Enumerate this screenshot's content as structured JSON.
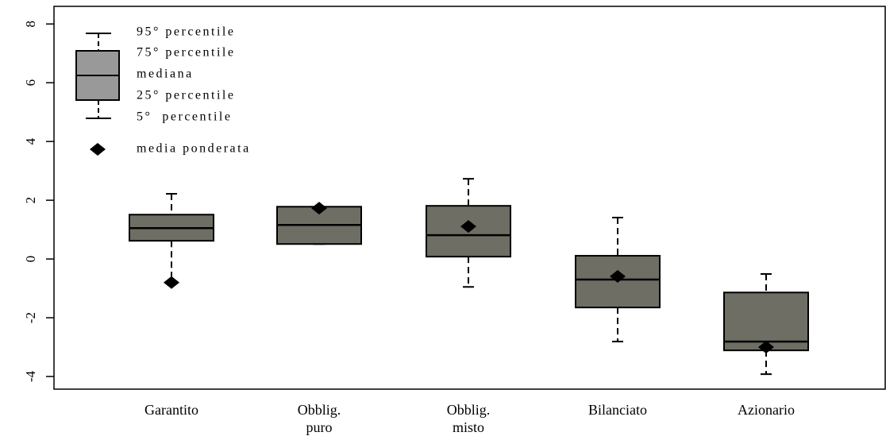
{
  "chart_data": {
    "type": "box",
    "categories": [
      "Garantito",
      "Obblig.\npuro",
      "Obblig.\nmisto",
      "Bilanciato",
      "Azionario"
    ],
    "p95": [
      2.22,
      1.78,
      2.73,
      1.41,
      -0.51
    ],
    "q3": [
      1.51,
      1.78,
      1.81,
      0.11,
      -1.14
    ],
    "median": [
      1.05,
      1.16,
      0.81,
      -0.7,
      -2.81
    ],
    "q1": [
      0.62,
      0.51,
      0.08,
      -1.65,
      -3.11
    ],
    "p5": [
      -0.78,
      0.51,
      -0.95,
      -2.81,
      -3.92
    ],
    "mean": [
      -0.8,
      1.73,
      1.11,
      -0.59,
      -3.0
    ],
    "color": "#6e6e64",
    "ylim": [
      -4.43,
      8.6
    ],
    "yticks": [
      -4,
      -2,
      0,
      2,
      4,
      6,
      8
    ],
    "legend": [
      "95° percentile",
      "75° percentile",
      "mediana",
      "25° percentile",
      "5°  percentile",
      "media ponderata"
    ]
  }
}
